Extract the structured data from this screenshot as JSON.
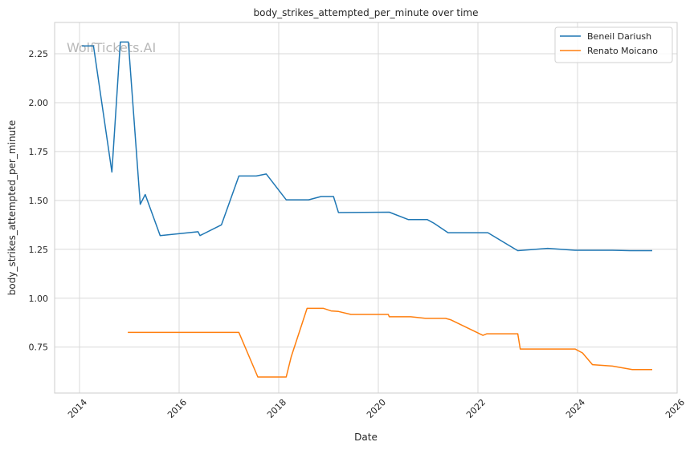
{
  "chart_data": {
    "type": "line",
    "title": "body_strikes_attempted_per_minute over time",
    "xlabel": "Date",
    "ylabel": "body_strikes_attempted_per_minute",
    "xlim": [
      2013.5,
      2026.0
    ],
    "ylim": [
      0.515,
      2.41
    ],
    "x_ticks": [
      2014,
      2016,
      2018,
      2020,
      2022,
      2024,
      2026
    ],
    "x_tick_labels": [
      "2014",
      "2016",
      "2018",
      "2020",
      "2022",
      "2024",
      "2026"
    ],
    "y_ticks": [
      0.75,
      1.0,
      1.25,
      1.5,
      1.75,
      2.0,
      2.25
    ],
    "y_tick_labels": [
      "0.75",
      "1.00",
      "1.25",
      "1.50",
      "1.75",
      "2.00",
      "2.25"
    ],
    "grid": true,
    "legend_position": "top-right",
    "watermark": "WolfTickets.AI",
    "series": [
      {
        "name": "Beneil Dariush",
        "color": "#1f77b4",
        "x": [
          2014.05,
          2014.28,
          2014.65,
          2014.82,
          2014.98,
          2015.22,
          2015.32,
          2015.62,
          2016.38,
          2016.42,
          2016.85,
          2017.2,
          2017.55,
          2017.75,
          2018.15,
          2018.6,
          2018.85,
          2019.1,
          2019.2,
          2020.22,
          2020.6,
          2020.98,
          2021.12,
          2021.4,
          2022.2,
          2022.8,
          2023.4,
          2023.95,
          2024.7,
          2025.05,
          2025.5
        ],
        "y": [
          2.29,
          2.29,
          1.645,
          2.31,
          2.31,
          1.48,
          1.53,
          1.32,
          1.34,
          1.32,
          1.375,
          1.625,
          1.625,
          1.635,
          1.503,
          1.503,
          1.52,
          1.52,
          1.438,
          1.44,
          1.402,
          1.402,
          1.383,
          1.335,
          1.335,
          1.243,
          1.255,
          1.245,
          1.245,
          1.243,
          1.243
        ]
      },
      {
        "name": "Renato Moicano",
        "color": "#ff7f0e",
        "x": [
          2014.97,
          2017.2,
          2017.58,
          2018.15,
          2018.25,
          2018.57,
          2018.9,
          2019.05,
          2019.2,
          2019.45,
          2020.2,
          2020.22,
          2020.65,
          2020.95,
          2021.35,
          2021.45,
          2022.1,
          2022.18,
          2022.8,
          2022.85,
          2023.95,
          2024.1,
          2024.3,
          2024.7,
          2025.1,
          2025.5
        ],
        "y": [
          0.825,
          0.825,
          0.597,
          0.597,
          0.7,
          0.948,
          0.948,
          0.935,
          0.932,
          0.917,
          0.917,
          0.905,
          0.905,
          0.897,
          0.897,
          0.89,
          0.81,
          0.818,
          0.818,
          0.74,
          0.74,
          0.72,
          0.66,
          0.653,
          0.635,
          0.635
        ]
      }
    ]
  }
}
